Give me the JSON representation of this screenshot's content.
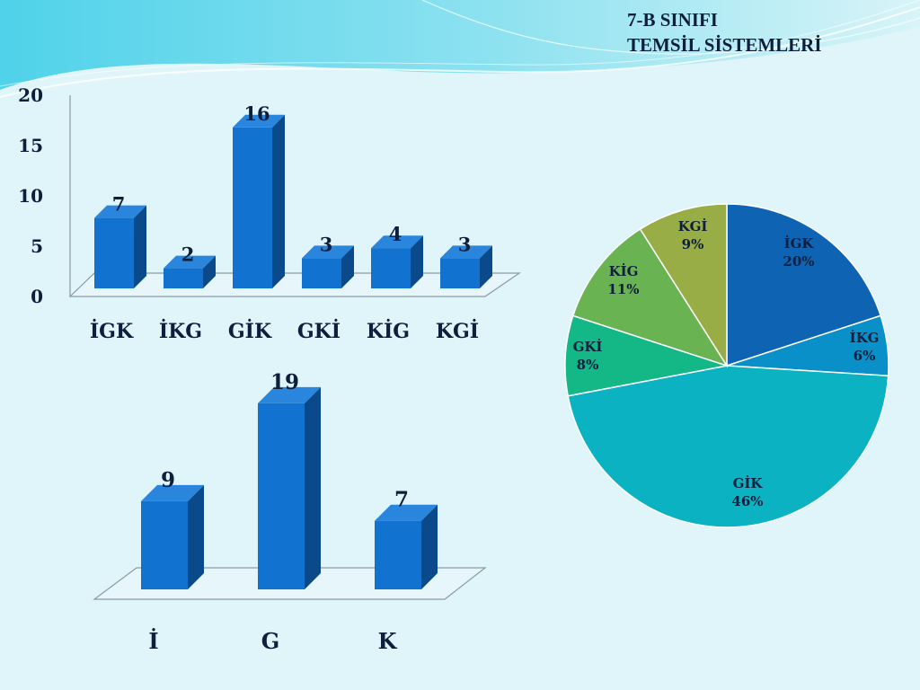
{
  "slide": {
    "title_line1": "7-B SINIFI",
    "title_line2": "TEMSİL SİSTEMLERİ"
  },
  "colors": {
    "bar_front": "#1172d0",
    "bar_side": "#0a4a8a",
    "bar_top": "#2a86dc",
    "background": "#dff5f9",
    "wave": "#5fd6ec"
  },
  "chart_data": [
    {
      "type": "bar",
      "style": "3d",
      "categories": [
        "İGK",
        "İKG",
        "GİK",
        "GKİ",
        "KİG",
        "KGİ"
      ],
      "values": [
        7,
        2,
        16,
        3,
        4,
        3
      ],
      "data_labels": [
        "7",
        "2",
        "16",
        "3",
        "4",
        "3"
      ],
      "ylim": [
        0,
        20
      ],
      "yticks": [
        0,
        5,
        10,
        15,
        20
      ],
      "ytick_labels": [
        "0",
        "5",
        "10",
        "15",
        "20"
      ],
      "grid": false,
      "legend": "none"
    },
    {
      "type": "bar",
      "style": "3d",
      "categories": [
        "İ",
        "G",
        "K"
      ],
      "values": [
        9,
        19,
        7
      ],
      "data_labels": [
        "9",
        "19",
        "7"
      ],
      "grid": false,
      "legend": "none"
    },
    {
      "type": "pie",
      "labels": [
        "İGK",
        "İKG",
        "GİK",
        "GKİ",
        "KİG",
        "KGİ"
      ],
      "values": [
        20,
        6,
        46,
        8,
        11,
        9
      ],
      "percent_labels": [
        "20%",
        "6%",
        "46%",
        "8%",
        "11%",
        "9%"
      ],
      "colors": [
        "#0f63b3",
        "#0a90c8",
        "#0bb2c2",
        "#13b886",
        "#6ab353",
        "#98ad45"
      ],
      "legend": "none"
    }
  ]
}
